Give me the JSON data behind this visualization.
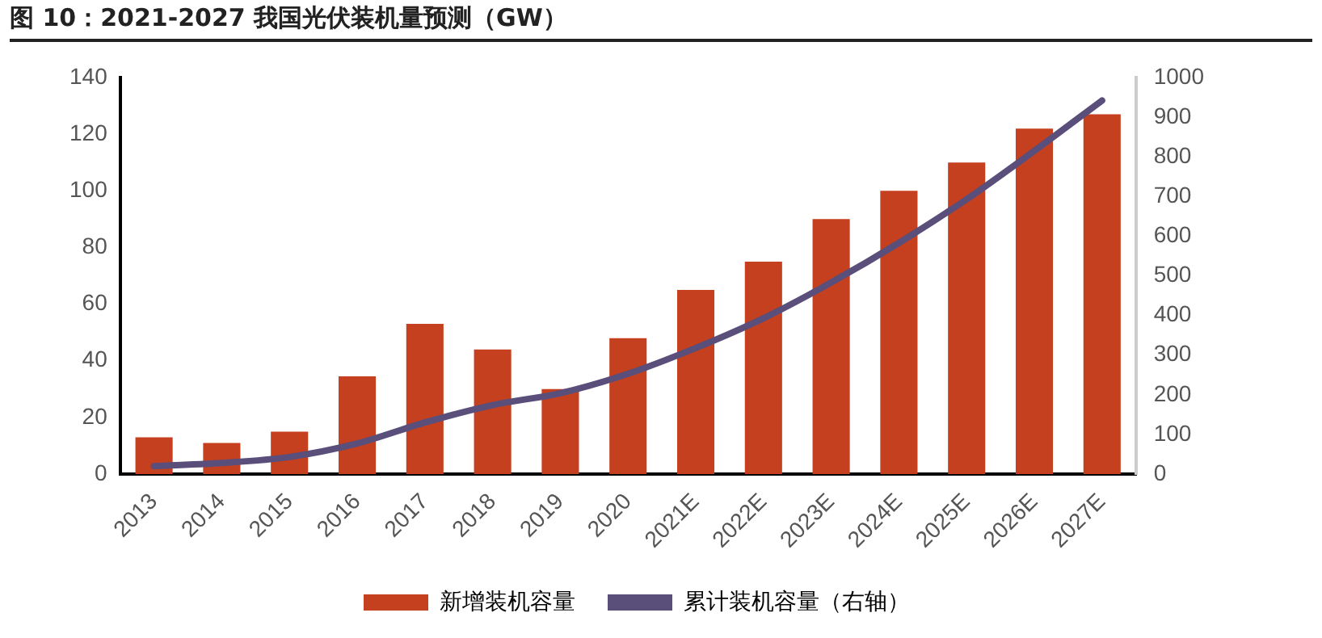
{
  "chart_data": {
    "type": "bar",
    "title": "图 10：2021-2027 我国光伏装机量预测（GW）",
    "categories": [
      "2013",
      "2014",
      "2015",
      "2016",
      "2017",
      "2018",
      "2019",
      "2020",
      "2021E",
      "2022E",
      "2023E",
      "2024E",
      "2025E",
      "2026E",
      "2027E"
    ],
    "series": [
      {
        "name": "新增装机容量",
        "color": "#c5401f",
        "values": [
          13,
          11,
          15,
          34.5,
          53,
          44,
          30,
          48,
          65,
          75,
          90,
          100,
          110,
          122,
          127
        ]
      },
      {
        "name": "累计装机容量（右轴）",
        "type": "line",
        "axis": "y2",
        "color": "#5a4e7a",
        "values": [
          20,
          28,
          43,
          77,
          130,
          174,
          204,
          253,
          318,
          393,
          483,
          583,
          693,
          815,
          942
        ]
      }
    ],
    "ylim": [
      0,
      140
    ],
    "yticks": [
      0,
      20,
      40,
      60,
      80,
      100,
      120,
      140
    ],
    "y2lim": [
      0,
      1000
    ],
    "y2ticks": [
      0,
      100,
      200,
      300,
      400,
      500,
      600,
      700,
      800,
      900,
      1000
    ],
    "grid": false,
    "legend": "bottom",
    "marker": "none",
    "line_style": "solid"
  }
}
